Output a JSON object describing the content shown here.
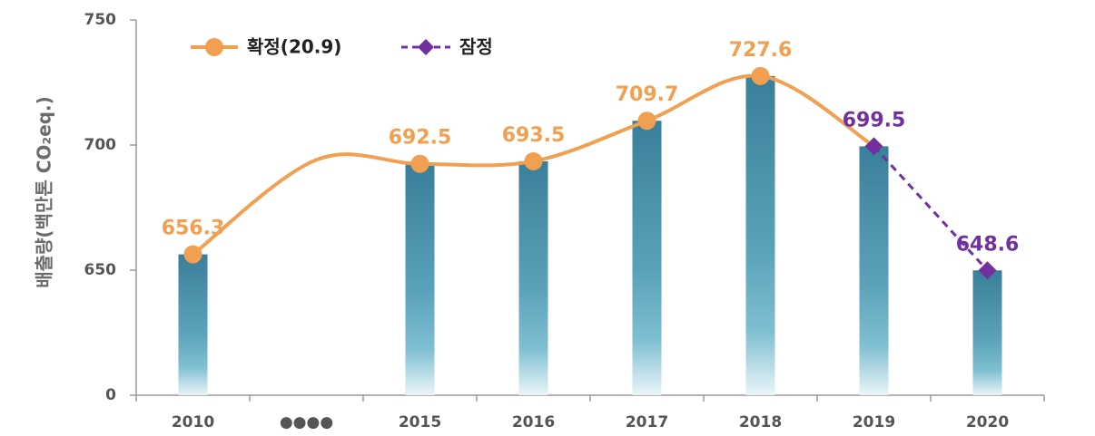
{
  "chart_data": {
    "type": "bar",
    "title": "",
    "xlabel": "",
    "ylabel": "배출량(백만톤 CO₂eq.)",
    "categories": [
      "2010",
      "●●●●",
      "2015",
      "2016",
      "2017",
      "2018",
      "2019",
      "2020"
    ],
    "y_ticks": [
      "0",
      "650",
      "700",
      "750"
    ],
    "y_axis_break": true,
    "ylim": [
      0,
      750
    ],
    "grid": false,
    "legend_position": "top-left",
    "series": [
      {
        "name": "확정(20.9)",
        "kind": "line+bar",
        "color": "#f0a050",
        "values": [
          656.3,
          null,
          692.5,
          693.5,
          709.7,
          727.6,
          699.5,
          null
        ],
        "labels": [
          "656.3",
          "",
          "692.5",
          "693.5",
          "709.7",
          "727.6",
          "",
          ""
        ]
      },
      {
        "name": "잠정",
        "kind": "dashed-line+bar",
        "color": "#7030a0",
        "values": [
          null,
          null,
          null,
          null,
          null,
          null,
          699.5,
          648.6
        ],
        "labels": [
          "",
          "",
          "",
          "",
          "",
          "",
          "699.5",
          "648.6"
        ]
      }
    ],
    "bar_color": "#3f88a4"
  }
}
